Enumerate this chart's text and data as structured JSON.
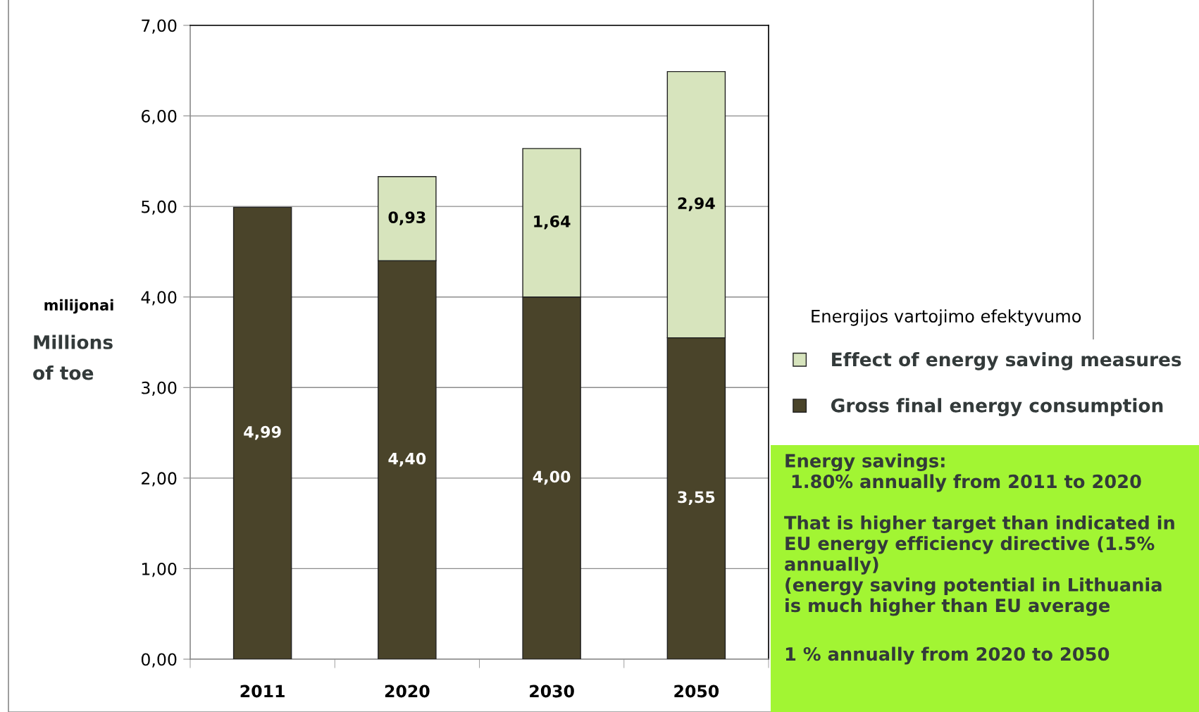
{
  "chart_data": {
    "type": "bar",
    "stacked": true,
    "categories": [
      "2011",
      "2020",
      "2030",
      "2050"
    ],
    "series": [
      {
        "name": "Gross final energy consumption",
        "color": "#4a442a",
        "values": [
          4.99,
          4.4,
          4.0,
          3.55
        ],
        "value_labels": [
          "4,99",
          "4,40",
          "4,00",
          "3,55"
        ]
      },
      {
        "name": "Effect of energy saving measures",
        "color": "#d7e4bd",
        "values": [
          null,
          0.93,
          1.64,
          2.94
        ],
        "value_labels": [
          null,
          "0,93",
          "1,64",
          "2,94"
        ]
      }
    ],
    "ylabel": "Millions\nof toe",
    "ylim": [
      0,
      7
    ],
    "yticks": [
      {
        "value": 0,
        "label": "0,00"
      },
      {
        "value": 1,
        "label": "1,00"
      },
      {
        "value": 2,
        "label": "2,00"
      },
      {
        "value": 3,
        "label": "3,00"
      },
      {
        "value": 4,
        "label": "4,00"
      },
      {
        "value": 5,
        "label": "5,00"
      },
      {
        "value": 6,
        "label": "6,00"
      },
      {
        "value": 7,
        "label": "7,00"
      }
    ],
    "grid": "y",
    "legend": "right",
    "annotations": [
      "milijonai",
      "Energijos vartojimo efektyvumo",
      "Energy savings:\n 1.80% annually from 2011 to 2020",
      "That is higher target than indicated in\nEU energy efficiency directive (1.5%\nannually)\n(energy saving potential in Lithuania\nis much higher than EU average",
      "1 % annually from 2020 to 2050"
    ]
  }
}
